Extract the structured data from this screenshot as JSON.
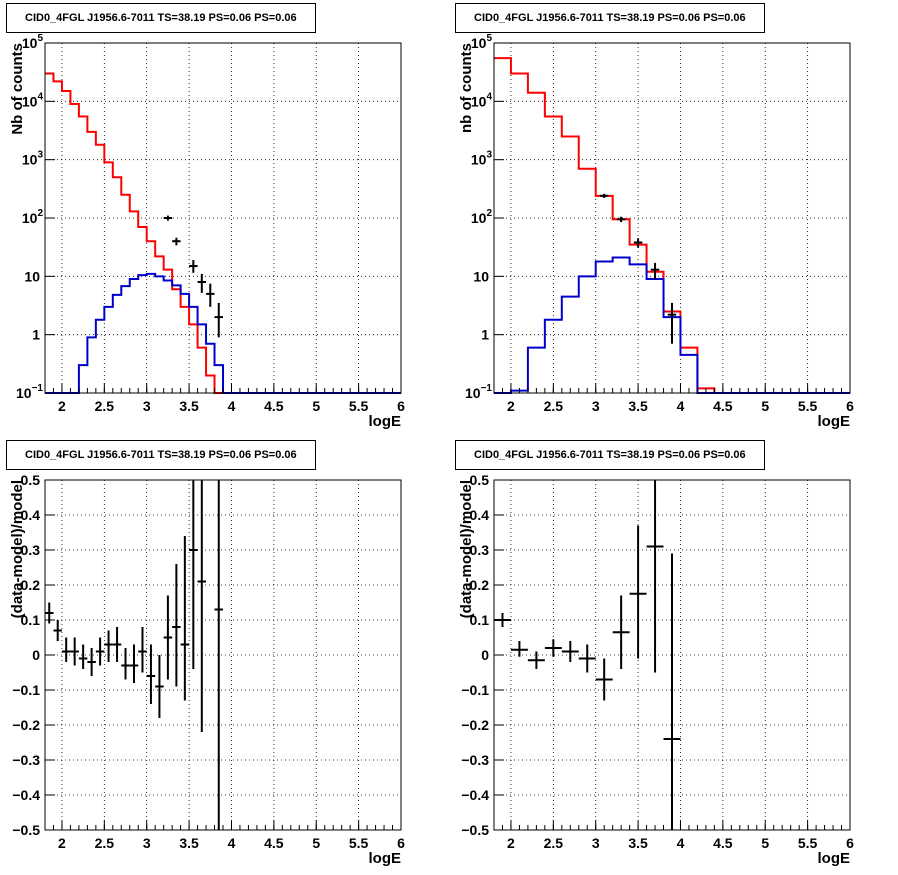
{
  "chart_data": [
    {
      "type": "step",
      "title": "CID0_4FGL J1956.6-7011 TS=38.19 PS=0.06 PS=0.06",
      "xlabel": "logE",
      "ylabel": "Nb of counts",
      "xlim": [
        1.8,
        6
      ],
      "ylim": [
        0.1,
        100000
      ],
      "yscale": "log",
      "grid": true,
      "xticks": [
        "2",
        "2.5",
        "3",
        "3.5",
        "4",
        "4.5",
        "5",
        "5.5",
        "6"
      ],
      "yticks": [
        {
          "v": 0.1,
          "label": "10",
          "exp": "−1"
        },
        {
          "v": 1,
          "label": "1",
          "exp": ""
        },
        {
          "v": 10,
          "label": "10",
          "exp": ""
        },
        {
          "v": 100,
          "label": "10",
          "exp": "2"
        },
        {
          "v": 1000,
          "label": "10",
          "exp": "3"
        },
        {
          "v": 10000,
          "label": "10",
          "exp": "4"
        },
        {
          "v": 100000,
          "label": "10",
          "exp": "5"
        }
      ],
      "bin_edges": [
        1.8,
        1.9,
        2.0,
        2.1,
        2.2,
        2.3,
        2.4,
        2.5,
        2.6,
        2.7,
        2.8,
        2.9,
        3.0,
        3.1,
        3.2,
        3.3,
        3.4,
        3.5,
        3.6,
        3.7,
        3.8,
        3.9,
        4.0,
        4.1,
        4.2,
        4.3,
        4.4,
        4.5,
        4.6,
        4.7,
        4.8,
        4.9,
        5.0,
        5.1,
        5.2,
        5.3,
        5.4,
        5.5,
        5.6,
        5.7,
        5.8,
        5.9,
        6.0
      ],
      "series": [
        {
          "name": "",
          "color": "#ff0000",
          "values": [
            30000,
            22000,
            15000,
            9000,
            5500,
            3000,
            1800,
            900,
            500,
            250,
            130,
            70,
            40,
            22,
            13,
            6,
            3,
            1.5,
            0.6,
            0.2,
            0.09,
            0.09,
            0.09,
            0.09,
            0.09,
            0.09,
            0.09,
            0.09,
            0.09,
            0.09,
            0.09,
            0.09,
            0.09,
            0.09,
            0.09,
            0.09,
            0.09,
            0.09,
            0.09,
            0.09,
            0.09,
            0.09
          ]
        },
        {
          "name": "",
          "color": "#0000cc",
          "values": [
            0.08,
            0.08,
            0.08,
            0.08,
            0.3,
            0.9,
            1.8,
            3,
            4.8,
            6.8,
            9,
            10.5,
            11,
            10,
            8.5,
            7,
            5,
            3,
            1.5,
            0.7,
            0.3,
            0.1,
            0.1,
            0.1,
            0.1,
            0.1,
            0.1,
            0.1,
            0.1,
            0.1,
            0.1,
            0.1,
            0.1,
            0.1,
            0.1,
            0.1,
            0.1,
            0.1,
            0.1,
            0.1,
            0.1,
            0.1
          ]
        }
      ],
      "points": [
        {
          "x": 3.25,
          "y": 100,
          "lo": 90,
          "hi": 110
        },
        {
          "x": 3.35,
          "y": 40,
          "lo": 34,
          "hi": 46
        },
        {
          "x": 3.55,
          "y": 15,
          "lo": 11.5,
          "hi": 19
        },
        {
          "x": 3.65,
          "y": 8,
          "lo": 5.2,
          "hi": 11
        },
        {
          "x": 3.75,
          "y": 5,
          "lo": 3,
          "hi": 7.5
        },
        {
          "x": 3.85,
          "y": 2,
          "lo": 0.9,
          "hi": 3.5
        }
      ]
    },
    {
      "type": "step",
      "title": "CID0_4FGL J1956.6-7011 TS=38.19 PS=0.06 PS=0.06",
      "xlabel": "logE",
      "ylabel": "nb of counts",
      "xlim": [
        1.8,
        6
      ],
      "ylim": [
        0.1,
        100000
      ],
      "yscale": "log",
      "grid": true,
      "xticks": [
        "2",
        "2.5",
        "3",
        "3.5",
        "4",
        "4.5",
        "5",
        "5.5",
        "6"
      ],
      "yticks": [
        {
          "v": 0.1,
          "label": "10",
          "exp": "−1"
        },
        {
          "v": 1,
          "label": "1",
          "exp": ""
        },
        {
          "v": 10,
          "label": "10",
          "exp": ""
        },
        {
          "v": 100,
          "label": "10",
          "exp": "2"
        },
        {
          "v": 1000,
          "label": "10",
          "exp": "3"
        },
        {
          "v": 10000,
          "label": "10",
          "exp": "4"
        },
        {
          "v": 100000,
          "label": "10",
          "exp": "5"
        }
      ],
      "bin_edges": [
        1.8,
        2.0,
        2.2,
        2.4,
        2.6,
        2.8,
        3.0,
        3.2,
        3.4,
        3.6,
        3.8,
        4.0,
        4.2,
        4.4,
        4.6,
        4.8,
        5.0,
        5.2,
        5.4,
        5.6,
        5.8,
        6.0
      ],
      "series": [
        {
          "name": "",
          "color": "#ff0000",
          "values": [
            55000,
            30000,
            14000,
            5500,
            2500,
            700,
            240,
            95,
            35,
            12,
            2.5,
            0.6,
            0.12,
            0.09,
            0.09,
            0.09,
            0.09,
            0.09,
            0.09,
            0.09,
            0.09
          ]
        },
        {
          "name": "",
          "color": "#0000cc",
          "values": [
            0.09,
            0.11,
            0.6,
            1.8,
            4.5,
            10,
            18,
            21,
            16,
            9,
            2,
            0.45,
            0.1,
            0.1,
            0.1,
            0.1,
            0.1,
            0.1,
            0.1,
            0.1,
            0.1
          ]
        }
      ],
      "points": [
        {
          "x": 3.1,
          "y": 240,
          "lo": 220,
          "hi": 260
        },
        {
          "x": 3.3,
          "y": 95,
          "lo": 85,
          "hi": 105
        },
        {
          "x": 3.5,
          "y": 38,
          "lo": 31,
          "hi": 45
        },
        {
          "x": 3.7,
          "y": 13,
          "lo": 9,
          "hi": 17
        },
        {
          "x": 3.9,
          "y": 2.2,
          "lo": 0.7,
          "hi": 3.5
        }
      ]
    },
    {
      "type": "scatter",
      "title": "CID0_4FGL J1956.6-7011 TS=38.19 PS=0.06 PS=0.06",
      "xlabel": "logE",
      "ylabel": "(data-model)/model",
      "xlim": [
        1.8,
        6
      ],
      "ylim": [
        -0.5,
        0.5
      ],
      "yscale": "linear",
      "grid": true,
      "xticks": [
        "2",
        "2.5",
        "3",
        "3.5",
        "4",
        "4.5",
        "5",
        "5.5",
        "6"
      ],
      "yticks": [
        {
          "v": -0.5,
          "label": "−0.5"
        },
        {
          "v": -0.4,
          "label": "−0.4"
        },
        {
          "v": -0.3,
          "label": "−0.3"
        },
        {
          "v": -0.2,
          "label": "−0.2"
        },
        {
          "v": -0.1,
          "label": "−0.1"
        },
        {
          "v": 0,
          "label": "0"
        },
        {
          "v": 0.1,
          "label": "0.1"
        },
        {
          "v": 0.2,
          "label": "0.2"
        },
        {
          "v": 0.3,
          "label": "0.3"
        },
        {
          "v": 0.4,
          "label": "0.4"
        },
        {
          "v": 0.5,
          "label": "0.5"
        }
      ],
      "halfwidth": 0.05,
      "points": [
        {
          "x": 1.85,
          "y": 0.12,
          "lo": 0.09,
          "hi": 0.15
        },
        {
          "x": 1.95,
          "y": 0.07,
          "lo": 0.04,
          "hi": 0.1
        },
        {
          "x": 2.05,
          "y": 0.01,
          "lo": -0.02,
          "hi": 0.05
        },
        {
          "x": 2.15,
          "y": 0.01,
          "lo": -0.03,
          "hi": 0.05
        },
        {
          "x": 2.25,
          "y": -0.01,
          "lo": -0.04,
          "hi": 0.03
        },
        {
          "x": 2.35,
          "y": -0.02,
          "lo": -0.06,
          "hi": 0.02
        },
        {
          "x": 2.45,
          "y": 0.01,
          "lo": -0.03,
          "hi": 0.05
        },
        {
          "x": 2.55,
          "y": 0.03,
          "lo": -0.02,
          "hi": 0.07
        },
        {
          "x": 2.65,
          "y": 0.03,
          "lo": -0.02,
          "hi": 0.08
        },
        {
          "x": 2.75,
          "y": -0.03,
          "lo": -0.07,
          "hi": 0.02
        },
        {
          "x": 2.85,
          "y": -0.03,
          "lo": -0.08,
          "hi": 0.03
        },
        {
          "x": 2.95,
          "y": 0.01,
          "lo": -0.05,
          "hi": 0.08
        },
        {
          "x": 3.05,
          "y": -0.06,
          "lo": -0.14,
          "hi": 0.03
        },
        {
          "x": 3.15,
          "y": -0.09,
          "lo": -0.18,
          "hi": 0.0
        },
        {
          "x": 3.25,
          "y": 0.05,
          "lo": -0.07,
          "hi": 0.17
        },
        {
          "x": 3.35,
          "y": 0.08,
          "lo": -0.09,
          "hi": 0.26
        },
        {
          "x": 3.45,
          "y": 0.03,
          "lo": -0.13,
          "hi": 0.34
        },
        {
          "x": 3.55,
          "y": 0.3,
          "lo": -0.04,
          "hi": 0.5
        },
        {
          "x": 3.65,
          "y": 0.21,
          "lo": -0.22,
          "hi": 0.5
        },
        {
          "x": 3.85,
          "y": 0.13,
          "lo": -0.5,
          "hi": 0.5
        }
      ]
    },
    {
      "type": "scatter",
      "title": "CID0_4FGL J1956.6-7011 TS=38.19 PS=0.06 PS=0.06",
      "xlabel": "logE",
      "ylabel": "(data-model)/model",
      "xlim": [
        1.8,
        6
      ],
      "ylim": [
        -0.5,
        0.5
      ],
      "yscale": "linear",
      "grid": true,
      "xticks": [
        "2",
        "2.5",
        "3",
        "3.5",
        "4",
        "4.5",
        "5",
        "5.5",
        "6"
      ],
      "yticks": [
        {
          "v": -0.5,
          "label": "−0.5"
        },
        {
          "v": -0.4,
          "label": "−0.4"
        },
        {
          "v": -0.3,
          "label": "−0.3"
        },
        {
          "v": -0.2,
          "label": "−0.2"
        },
        {
          "v": -0.1,
          "label": "−0.1"
        },
        {
          "v": 0,
          "label": "0"
        },
        {
          "v": 0.1,
          "label": "0.1"
        },
        {
          "v": 0.2,
          "label": "0.2"
        },
        {
          "v": 0.3,
          "label": "0.3"
        },
        {
          "v": 0.4,
          "label": "0.4"
        },
        {
          "v": 0.5,
          "label": "0.5"
        }
      ],
      "halfwidth": 0.1,
      "points": [
        {
          "x": 1.9,
          "y": 0.1,
          "lo": 0.08,
          "hi": 0.12
        },
        {
          "x": 2.1,
          "y": 0.015,
          "lo": -0.005,
          "hi": 0.04
        },
        {
          "x": 2.3,
          "y": -0.015,
          "lo": -0.04,
          "hi": 0.01
        },
        {
          "x": 2.5,
          "y": 0.02,
          "lo": -0.005,
          "hi": 0.045
        },
        {
          "x": 2.7,
          "y": 0.01,
          "lo": -0.02,
          "hi": 0.04
        },
        {
          "x": 2.9,
          "y": -0.01,
          "lo": -0.05,
          "hi": 0.03
        },
        {
          "x": 3.1,
          "y": -0.07,
          "lo": -0.13,
          "hi": -0.01
        },
        {
          "x": 3.3,
          "y": 0.065,
          "lo": -0.04,
          "hi": 0.17
        },
        {
          "x": 3.5,
          "y": 0.175,
          "lo": -0.01,
          "hi": 0.37
        },
        {
          "x": 3.7,
          "y": 0.31,
          "lo": -0.05,
          "hi": 0.5
        },
        {
          "x": 3.9,
          "y": -0.24,
          "lo": -0.5,
          "hi": 0.29
        }
      ]
    }
  ]
}
